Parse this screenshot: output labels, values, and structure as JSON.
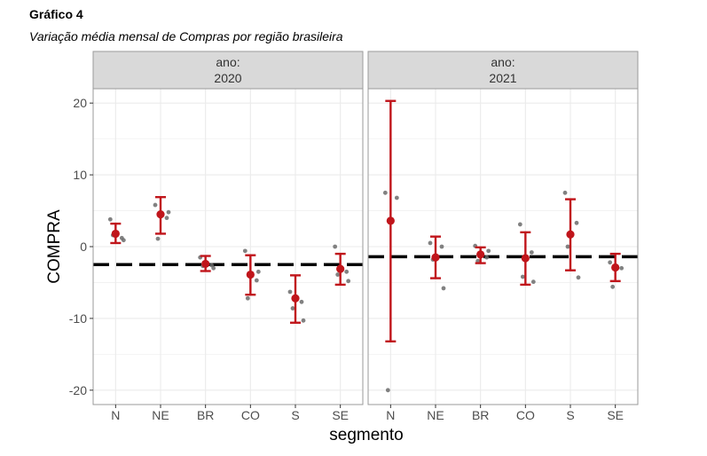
{
  "figure": {
    "title": "Gráfico 4",
    "subtitle": "Variação média mensal de Compras por região brasileira"
  },
  "colors": {
    "mean": "#c0151b",
    "points": "#6b6b6b",
    "strip_bg": "#d9d9d9",
    "panel_border": "#9a9a9a",
    "grid": "#ebebeb",
    "reference_line": "#000000"
  },
  "chart_data": {
    "type": "scatter",
    "title": "",
    "xlabel": "segmento",
    "ylabel": "COMPRA",
    "ylim": [
      -22,
      22
    ],
    "yticks": [
      -20,
      -10,
      0,
      10,
      20
    ],
    "categories": [
      "N",
      "NE",
      "BR",
      "CO",
      "S",
      "SE"
    ],
    "grid": true,
    "facets": [
      {
        "strip_line1": "ano:",
        "strip_line2": "2020",
        "reference_line": -2.5,
        "summary": [
          {
            "segment": "N",
            "mean": 1.8,
            "low": 0.5,
            "high": 3.2
          },
          {
            "segment": "NE",
            "mean": 4.5,
            "low": 1.8,
            "high": 6.9
          },
          {
            "segment": "BR",
            "mean": -2.4,
            "low": -3.4,
            "high": -1.3
          },
          {
            "segment": "CO",
            "mean": -3.9,
            "low": -6.7,
            "high": -1.2
          },
          {
            "segment": "S",
            "mean": -7.2,
            "low": -10.6,
            "high": -4.0
          },
          {
            "segment": "SE",
            "mean": -3.1,
            "low": -5.3,
            "high": -1.0
          }
        ],
        "points": [
          {
            "segment": "N",
            "values": [
              3.8,
              1.2,
              1.6,
              0.9
            ]
          },
          {
            "segment": "NE",
            "values": [
              5.8,
              4.0,
              1.1,
              4.8
            ]
          },
          {
            "segment": "BR",
            "values": [
              -1.5,
              -2.6,
              -2.7,
              -3.0
            ]
          },
          {
            "segment": "CO",
            "values": [
              -0.6,
              -4.7,
              -7.2,
              -3.5
            ]
          },
          {
            "segment": "S",
            "values": [
              -6.3,
              -7.7,
              -8.6,
              -10.3
            ]
          },
          {
            "segment": "SE",
            "values": [
              0.0,
              -3.5,
              -3.9,
              -4.8
            ]
          }
        ]
      },
      {
        "strip_line1": "ano:",
        "strip_line2": "2021",
        "reference_line": -1.4,
        "summary": [
          {
            "segment": "N",
            "mean": 3.6,
            "low": -13.2,
            "high": 20.3
          },
          {
            "segment": "NE",
            "mean": -1.5,
            "low": -4.4,
            "high": 1.4
          },
          {
            "segment": "BR",
            "mean": -1.1,
            "low": -2.3,
            "high": -0.1
          },
          {
            "segment": "CO",
            "mean": -1.6,
            "low": -5.3,
            "high": 2.0
          },
          {
            "segment": "S",
            "mean": 1.7,
            "low": -3.3,
            "high": 6.6
          },
          {
            "segment": "SE",
            "mean": -2.9,
            "low": -4.8,
            "high": -1.0
          }
        ],
        "points": [
          {
            "segment": "N",
            "values": [
              7.5,
              6.8,
              -20.0
            ]
          },
          {
            "segment": "NE",
            "values": [
              0.5,
              0.0,
              -1.8,
              -5.8
            ]
          },
          {
            "segment": "BR",
            "values": [
              0.1,
              -1.5,
              -2.0,
              -0.6
            ]
          },
          {
            "segment": "CO",
            "values": [
              3.1,
              -0.8,
              -4.2,
              -4.9
            ]
          },
          {
            "segment": "S",
            "values": [
              7.5,
              3.3,
              0.0,
              -4.3
            ]
          },
          {
            "segment": "SE",
            "values": [
              -2.2,
              -3.0,
              -5.6
            ]
          }
        ]
      }
    ]
  }
}
